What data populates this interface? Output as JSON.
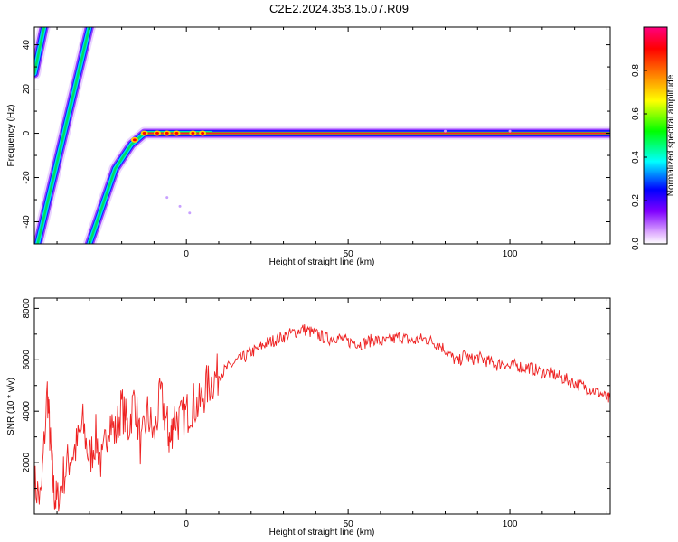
{
  "title": "C2E2.2024.353.15.07.R09",
  "chart_data": [
    {
      "type": "heatmap",
      "xlabel": "Height of straight line (km)",
      "ylabel": "Frequency (Hz)",
      "xlim": [
        -47,
        131
      ],
      "ylim": [
        -50,
        48
      ],
      "xticks": [
        0,
        50,
        100
      ],
      "yticks": [
        -40,
        -20,
        0,
        20,
        40
      ],
      "colorbar": {
        "label": "Normalized spectral amplitude",
        "range": [
          0,
          1
        ],
        "ticks": [
          0.0,
          0.2,
          0.4,
          0.6,
          0.8
        ],
        "colors": [
          "#ffffff",
          "#e0b0ff",
          "#8000ff",
          "#0000ff",
          "#00ffff",
          "#00ff00",
          "#ffff00",
          "#ff8000",
          "#ff0000",
          "#ff00a0"
        ]
      },
      "ridges": [
        {
          "name": "",
          "points": [
            [
              -47,
              27
            ],
            [
              -44,
              48
            ]
          ]
        },
        {
          "name": "",
          "points": [
            [
              -46,
              -50
            ],
            [
              -30,
              48
            ]
          ]
        },
        {
          "name": "",
          "points": [
            [
              -30,
              -50
            ],
            [
              -22,
              -16
            ],
            [
              -17,
              -5
            ],
            [
              -13,
              0
            ],
            [
              131,
              0
            ]
          ]
        }
      ]
    },
    {
      "type": "line",
      "xlabel": "Height of straight line (km)",
      "ylabel": "SNR (10 * v/v)",
      "xlim": [
        -47,
        131
      ],
      "ylim": [
        0,
        8400
      ],
      "xticks": [
        0,
        50,
        100
      ],
      "yticks": [
        2000,
        4000,
        6000,
        8000
      ],
      "series": [
        {
          "name": "",
          "color": "#ee2222",
          "x": [
            -47,
            -45,
            -43,
            -42,
            -41,
            -40,
            -38,
            -36,
            -34,
            -32,
            -30,
            -28,
            -26,
            -24,
            -22,
            -20,
            -18,
            -16,
            -14,
            -12,
            -10,
            -8,
            -6,
            -5,
            -4,
            -2,
            0,
            2,
            4,
            6,
            8,
            10,
            12,
            14,
            16,
            18,
            20,
            22,
            24,
            26,
            28,
            30,
            32,
            34,
            36,
            38,
            40,
            42,
            44,
            46,
            48,
            50,
            52,
            54,
            56,
            58,
            60,
            62,
            64,
            66,
            68,
            70,
            72,
            74,
            76,
            78,
            80,
            82,
            84,
            86,
            88,
            90,
            92,
            94,
            96,
            98,
            100,
            102,
            104,
            106,
            108,
            110,
            112,
            114,
            116,
            118,
            120,
            122,
            124,
            126,
            128,
            130,
            131
          ],
          "y": [
            1200,
            500,
            4800,
            2600,
            900,
            400,
            1500,
            2200,
            2600,
            3500,
            2100,
            3000,
            1800,
            3800,
            3100,
            4200,
            3300,
            4600,
            2500,
            3900,
            3000,
            4600,
            3500,
            2700,
            3800,
            3600,
            3900,
            4300,
            4200,
            4900,
            5200,
            5400,
            5600,
            5800,
            6000,
            6100,
            6300,
            6400,
            6600,
            6700,
            6800,
            6900,
            7000,
            7100,
            7200,
            7100,
            7000,
            6900,
            6800,
            6900,
            6800,
            6700,
            6700,
            6600,
            6700,
            6800,
            6700,
            6700,
            6800,
            6900,
            6800,
            6700,
            6800,
            6800,
            6700,
            6600,
            6400,
            6100,
            5900,
            6200,
            6000,
            6100,
            6000,
            5900,
            5800,
            5900,
            5700,
            5800,
            5700,
            5700,
            5600,
            5500,
            5500,
            5400,
            5300,
            5200,
            5100,
            5000,
            4900,
            4800,
            4700,
            4500,
            4450
          ]
        }
      ]
    }
  ]
}
